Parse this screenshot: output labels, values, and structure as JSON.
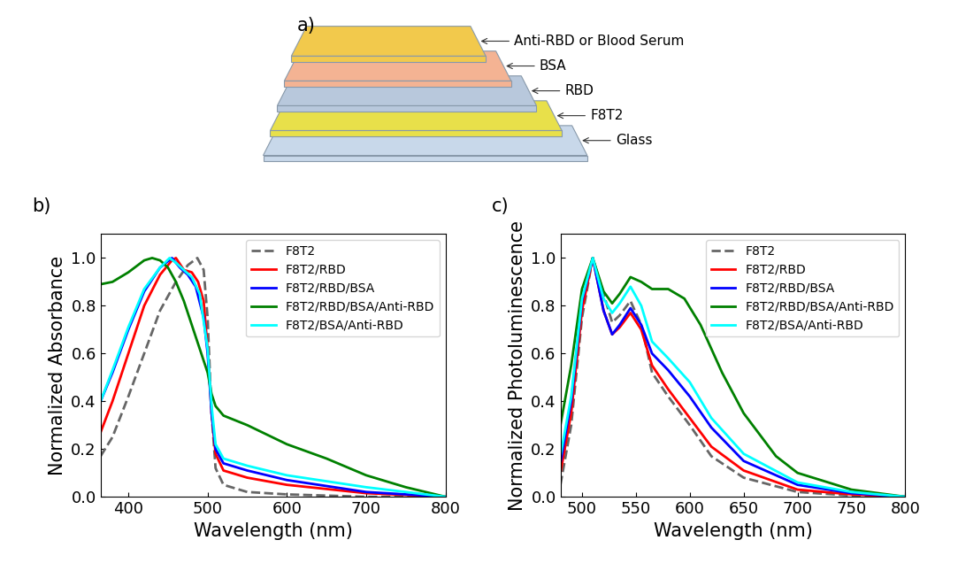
{
  "diagram": {
    "label": "a)",
    "layers": [
      "Anti-RBD or Blood Serum",
      "BSA",
      "RBD",
      "F8T2",
      "Glass"
    ]
  },
  "chart_data": [
    {
      "type": "line",
      "title": "b)",
      "x_label": "Wavelength (nm)",
      "y_label": "Normalized Absorbance",
      "xlim": [
        365,
        800
      ],
      "xticks": [
        400,
        500,
        600,
        700,
        800
      ],
      "ylim": [
        0,
        1.1
      ],
      "yticks": [
        {
          "value": 0,
          "label": "0.0"
        },
        {
          "value": 0.2,
          "label": "0.2"
        },
        {
          "value": 0.4,
          "label": "0.4"
        },
        {
          "value": 0.6,
          "label": "0.6"
        },
        {
          "value": 0.8,
          "label": "0.8"
        },
        {
          "value": 1,
          "label": "1.0"
        }
      ],
      "legend": "upper right",
      "series": [
        {
          "name": "F8T2",
          "color": "#666666",
          "line_style": "dashed",
          "x": [
            365,
            380,
            400,
            420,
            440,
            460,
            475,
            487,
            495,
            500,
            505,
            510,
            520,
            550,
            600,
            700,
            800
          ],
          "values": [
            0.17,
            0.25,
            0.42,
            0.6,
            0.78,
            0.9,
            0.97,
            1.0,
            0.95,
            0.75,
            0.35,
            0.12,
            0.05,
            0.02,
            0.01,
            0.0,
            0.0
          ]
        },
        {
          "name": "F8T2/RBD",
          "color": "#ff0000",
          "line_style": "solid",
          "x": [
            365,
            380,
            400,
            420,
            440,
            455,
            460,
            470,
            480,
            488,
            495,
            500,
            505,
            510,
            520,
            550,
            600,
            700,
            800
          ],
          "values": [
            0.27,
            0.4,
            0.6,
            0.8,
            0.93,
            0.99,
            1.0,
            0.95,
            0.94,
            0.9,
            0.82,
            0.62,
            0.35,
            0.18,
            0.11,
            0.08,
            0.05,
            0.015,
            0.0
          ]
        },
        {
          "name": "F8T2/RBD/BSA",
          "color": "#0000ff",
          "line_style": "solid",
          "x": [
            365,
            380,
            400,
            420,
            440,
            455,
            465,
            475,
            485,
            495,
            500,
            505,
            510,
            520,
            550,
            600,
            700,
            800
          ],
          "values": [
            0.4,
            0.52,
            0.7,
            0.86,
            0.96,
            1.0,
            0.96,
            0.93,
            0.88,
            0.75,
            0.6,
            0.35,
            0.2,
            0.14,
            0.11,
            0.07,
            0.02,
            0.0
          ]
        },
        {
          "name": "F8T2/RBD/BSA/Anti-RBD",
          "color": "#008000",
          "line_style": "solid",
          "x": [
            365,
            380,
            400,
            420,
            430,
            440,
            450,
            460,
            470,
            480,
            490,
            500,
            505,
            510,
            520,
            550,
            600,
            650,
            700,
            750,
            800
          ],
          "values": [
            0.89,
            0.9,
            0.94,
            0.99,
            1.0,
            0.99,
            0.96,
            0.9,
            0.82,
            0.72,
            0.62,
            0.52,
            0.43,
            0.38,
            0.34,
            0.3,
            0.22,
            0.16,
            0.09,
            0.04,
            0.0
          ]
        },
        {
          "name": "F8T2/BSA/Anti-RBD",
          "color": "#00ffff",
          "line_style": "solid",
          "x": [
            365,
            380,
            400,
            420,
            440,
            452,
            460,
            470,
            480,
            490,
            500,
            505,
            510,
            520,
            550,
            600,
            700,
            800
          ],
          "values": [
            0.4,
            0.53,
            0.71,
            0.87,
            0.96,
            1.0,
            0.98,
            0.95,
            0.92,
            0.85,
            0.62,
            0.38,
            0.22,
            0.16,
            0.13,
            0.09,
            0.04,
            0.0
          ]
        }
      ]
    },
    {
      "type": "line",
      "title": "c)",
      "x_label": "Wavelength (nm)",
      "y_label": "Normalized Photoluminescence",
      "xlim": [
        480,
        800
      ],
      "xticks": [
        500,
        550,
        600,
        650,
        700,
        750,
        800
      ],
      "ylim": [
        0,
        1.1
      ],
      "yticks": [
        {
          "value": 0,
          "label": "0.0"
        },
        {
          "value": 0.2,
          "label": "0.2"
        },
        {
          "value": 0.4,
          "label": "0.4"
        },
        {
          "value": 0.6,
          "label": "0.6"
        },
        {
          "value": 0.8,
          "label": "0.8"
        },
        {
          "value": 1,
          "label": "1.0"
        }
      ],
      "legend": "upper right",
      "series": [
        {
          "name": "F8T2",
          "color": "#666666",
          "line_style": "dashed",
          "x": [
            480,
            490,
            500,
            510,
            520,
            528,
            535,
            545,
            555,
            565,
            580,
            600,
            620,
            650,
            700,
            750,
            800
          ],
          "values": [
            0.05,
            0.3,
            0.75,
            1.0,
            0.85,
            0.73,
            0.76,
            0.82,
            0.72,
            0.52,
            0.42,
            0.3,
            0.17,
            0.08,
            0.02,
            0.005,
            0.0
          ]
        },
        {
          "name": "F8T2/RBD",
          "color": "#ff0000",
          "line_style": "solid",
          "x": [
            480,
            490,
            500,
            510,
            520,
            528,
            535,
            545,
            555,
            565,
            580,
            600,
            620,
            650,
            700,
            750,
            800
          ],
          "values": [
            0.1,
            0.35,
            0.78,
            1.0,
            0.78,
            0.68,
            0.71,
            0.77,
            0.7,
            0.55,
            0.45,
            0.33,
            0.21,
            0.11,
            0.03,
            0.01,
            0.0
          ]
        },
        {
          "name": "F8T2/RBD/BSA",
          "color": "#0000ff",
          "line_style": "solid",
          "x": [
            480,
            490,
            500,
            510,
            520,
            528,
            535,
            545,
            555,
            565,
            580,
            600,
            620,
            650,
            700,
            750,
            800
          ],
          "values": [
            0.14,
            0.4,
            0.82,
            1.0,
            0.78,
            0.68,
            0.72,
            0.79,
            0.72,
            0.6,
            0.53,
            0.42,
            0.29,
            0.15,
            0.05,
            0.015,
            0.0
          ]
        },
        {
          "name": "F8T2/RBD/BSA/Anti-RBD",
          "color": "#008000",
          "line_style": "solid",
          "x": [
            480,
            490,
            500,
            510,
            520,
            528,
            535,
            545,
            555,
            565,
            580,
            595,
            610,
            630,
            650,
            680,
            700,
            750,
            800
          ],
          "values": [
            0.3,
            0.55,
            0.87,
            1.0,
            0.86,
            0.81,
            0.85,
            0.92,
            0.9,
            0.87,
            0.87,
            0.83,
            0.72,
            0.52,
            0.35,
            0.17,
            0.1,
            0.03,
            0.0
          ]
        },
        {
          "name": "F8T2/BSA/Anti-RBD",
          "color": "#00ffff",
          "line_style": "solid",
          "x": [
            480,
            490,
            500,
            510,
            520,
            528,
            535,
            545,
            555,
            565,
            580,
            600,
            620,
            650,
            700,
            750,
            800
          ],
          "values": [
            0.17,
            0.42,
            0.83,
            1.0,
            0.83,
            0.77,
            0.81,
            0.88,
            0.8,
            0.65,
            0.58,
            0.48,
            0.33,
            0.18,
            0.06,
            0.02,
            0.0
          ]
        }
      ]
    }
  ]
}
